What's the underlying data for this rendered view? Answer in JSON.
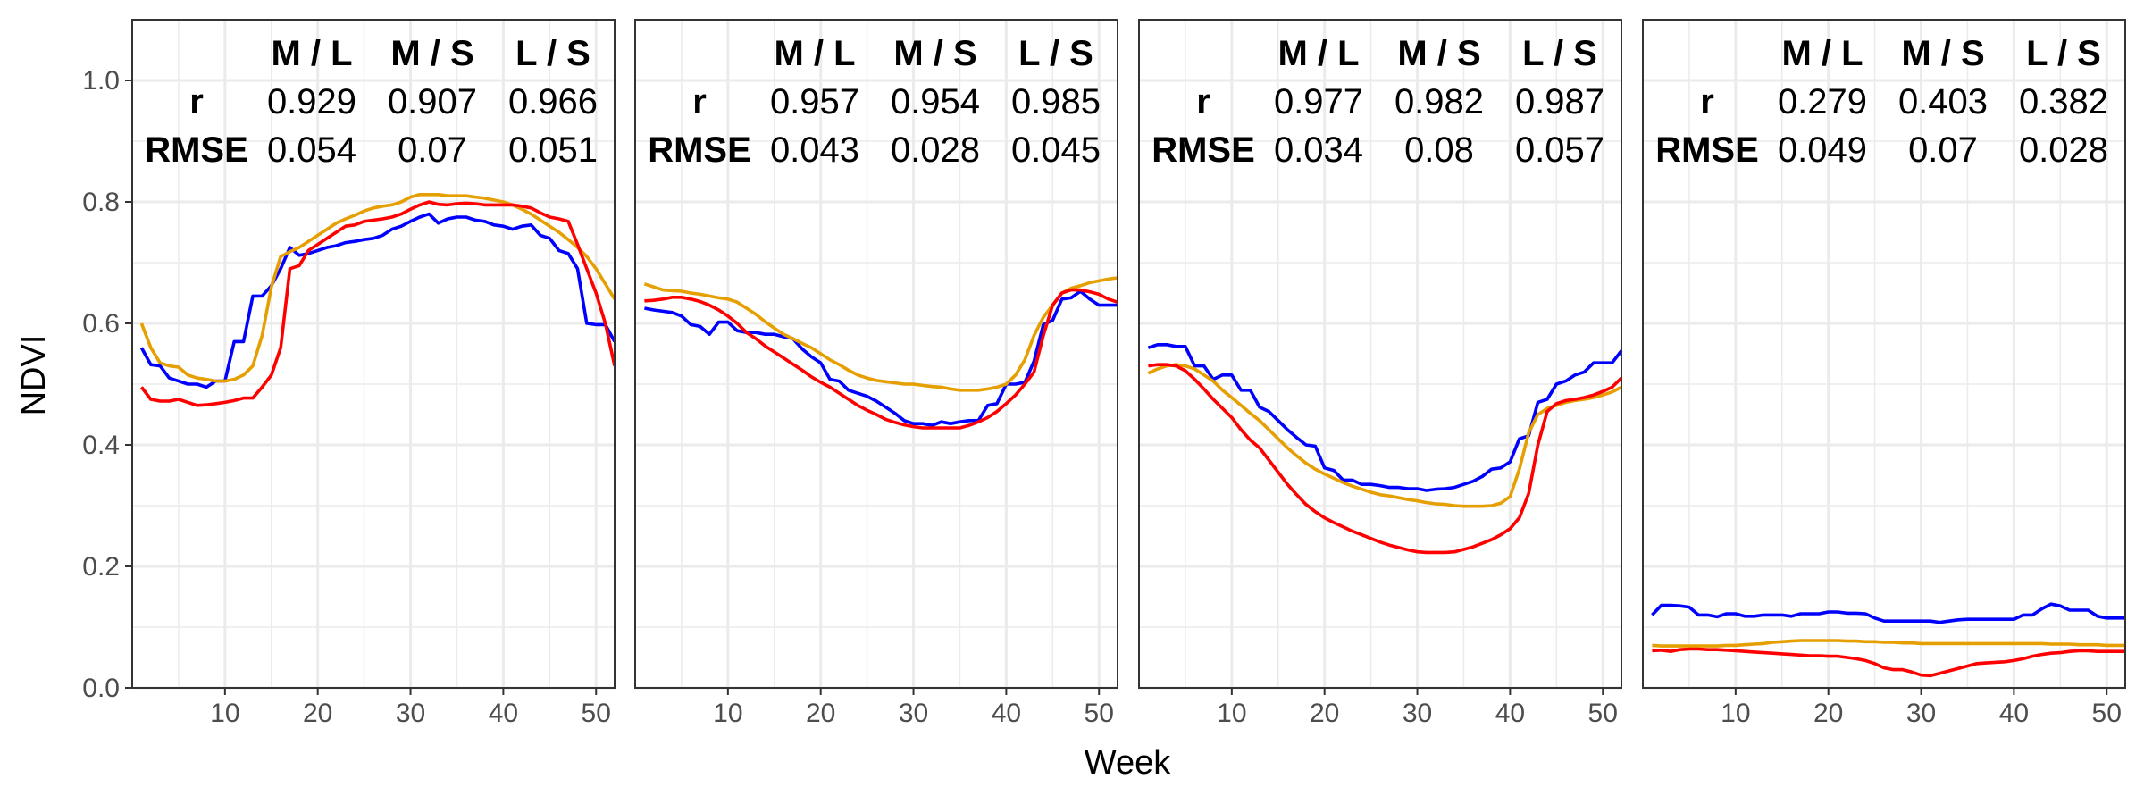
{
  "chart_data": {
    "type": "line",
    "xlabel": "Week",
    "ylabel": "NDVI",
    "xlim": [
      0,
      52
    ],
    "ylim": [
      0,
      1.1
    ],
    "x_ticks": [
      10,
      20,
      30,
      40,
      50
    ],
    "y_ticks": [
      0.0,
      0.2,
      0.4,
      0.6,
      0.8,
      1.0
    ],
    "y_tick_labels": [
      "0.0",
      "0.2",
      "0.4",
      "0.6",
      "0.8",
      "1.0"
    ],
    "grid": true,
    "series_colors": {
      "s1": "#ff0000",
      "s2": "#e69f00",
      "s3": "#0000ff"
    },
    "table_headers": [
      "M / L",
      "M / S",
      "L / S"
    ],
    "row_labels": [
      "r",
      "RMSE"
    ],
    "weeks": [
      1,
      2,
      3,
      4,
      5,
      6,
      7,
      8,
      9,
      10,
      11,
      12,
      13,
      14,
      15,
      16,
      17,
      18,
      19,
      20,
      21,
      22,
      23,
      24,
      25,
      26,
      27,
      28,
      29,
      30,
      31,
      32,
      33,
      34,
      35,
      36,
      37,
      38,
      39,
      40,
      41,
      42,
      43,
      44,
      45,
      46,
      47,
      48,
      49,
      50,
      51,
      52
    ],
    "panels": [
      {
        "stats": {
          "r": [
            "0.929",
            "0.907",
            "0.966"
          ],
          "rmse": [
            "0.054",
            "0.07",
            "0.051"
          ]
        },
        "series": [
          {
            "key": "s1",
            "values": [
              0.495,
              0.475,
              0.472,
              0.472,
              0.475,
              0.47,
              0.465,
              0.466,
              0.468,
              0.47,
              0.473,
              0.477,
              0.477,
              0.495,
              0.515,
              0.56,
              0.69,
              0.695,
              0.72,
              0.73,
              0.74,
              0.75,
              0.76,
              0.762,
              0.768,
              0.77,
              0.772,
              0.775,
              0.78,
              0.788,
              0.795,
              0.8,
              0.796,
              0.795,
              0.797,
              0.798,
              0.797,
              0.795,
              0.795,
              0.795,
              0.795,
              0.793,
              0.79,
              0.782,
              0.775,
              0.772,
              0.768,
              0.73,
              0.69,
              0.65,
              0.6,
              0.53
            ]
          },
          {
            "key": "s2",
            "values": [
              0.6,
              0.56,
              0.535,
              0.53,
              0.528,
              0.515,
              0.51,
              0.508,
              0.505,
              0.505,
              0.508,
              0.515,
              0.53,
              0.58,
              0.66,
              0.71,
              0.718,
              0.725,
              0.735,
              0.745,
              0.755,
              0.765,
              0.772,
              0.778,
              0.785,
              0.79,
              0.793,
              0.795,
              0.8,
              0.808,
              0.812,
              0.812,
              0.812,
              0.81,
              0.81,
              0.81,
              0.808,
              0.806,
              0.803,
              0.8,
              0.795,
              0.788,
              0.78,
              0.77,
              0.76,
              0.75,
              0.738,
              0.725,
              0.71,
              0.69,
              0.665,
              0.64
            ]
          },
          {
            "key": "s3",
            "values": [
              0.56,
              0.532,
              0.53,
              0.51,
              0.505,
              0.5,
              0.5,
              0.495,
              0.505,
              0.505,
              0.57,
              0.57,
              0.645,
              0.645,
              0.662,
              0.69,
              0.725,
              0.712,
              0.715,
              0.72,
              0.725,
              0.728,
              0.733,
              0.735,
              0.738,
              0.74,
              0.745,
              0.755,
              0.76,
              0.768,
              0.775,
              0.78,
              0.765,
              0.772,
              0.775,
              0.775,
              0.77,
              0.768,
              0.762,
              0.76,
              0.755,
              0.76,
              0.762,
              0.745,
              0.74,
              0.72,
              0.715,
              0.69,
              0.6,
              0.598,
              0.598,
              0.57
            ]
          }
        ]
      },
      {
        "stats": {
          "r": [
            "0.957",
            "0.954",
            "0.985"
          ],
          "rmse": [
            "0.043",
            "0.028",
            "0.045"
          ]
        },
        "series": [
          {
            "key": "s1",
            "values": [
              0.637,
              0.638,
              0.64,
              0.643,
              0.643,
              0.64,
              0.636,
              0.63,
              0.622,
              0.612,
              0.6,
              0.585,
              0.575,
              0.563,
              0.553,
              0.543,
              0.533,
              0.523,
              0.512,
              0.503,
              0.495,
              0.485,
              0.475,
              0.465,
              0.457,
              0.45,
              0.442,
              0.437,
              0.433,
              0.43,
              0.428,
              0.428,
              0.428,
              0.428,
              0.428,
              0.432,
              0.438,
              0.445,
              0.455,
              0.468,
              0.482,
              0.5,
              0.52,
              0.58,
              0.63,
              0.65,
              0.655,
              0.655,
              0.652,
              0.648,
              0.64,
              0.635
            ]
          },
          {
            "key": "s2",
            "values": [
              0.665,
              0.66,
              0.655,
              0.654,
              0.653,
              0.65,
              0.648,
              0.645,
              0.642,
              0.64,
              0.635,
              0.625,
              0.615,
              0.603,
              0.592,
              0.582,
              0.575,
              0.567,
              0.56,
              0.55,
              0.54,
              0.532,
              0.523,
              0.515,
              0.51,
              0.506,
              0.504,
              0.502,
              0.5,
              0.5,
              0.498,
              0.496,
              0.495,
              0.492,
              0.49,
              0.49,
              0.49,
              0.492,
              0.495,
              0.5,
              0.515,
              0.54,
              0.58,
              0.61,
              0.63,
              0.65,
              0.658,
              0.662,
              0.667,
              0.67,
              0.673,
              0.675
            ]
          },
          {
            "key": "s3",
            "values": [
              0.625,
              0.622,
              0.62,
              0.618,
              0.612,
              0.598,
              0.595,
              0.582,
              0.602,
              0.602,
              0.588,
              0.585,
              0.585,
              0.582,
              0.582,
              0.578,
              0.575,
              0.558,
              0.545,
              0.535,
              0.508,
              0.505,
              0.49,
              0.485,
              0.48,
              0.472,
              0.462,
              0.452,
              0.44,
              0.435,
              0.435,
              0.432,
              0.438,
              0.435,
              0.438,
              0.44,
              0.44,
              0.465,
              0.468,
              0.5,
              0.5,
              0.503,
              0.538,
              0.598,
              0.605,
              0.64,
              0.642,
              0.653,
              0.64,
              0.63,
              0.63,
              0.63
            ]
          }
        ]
      },
      {
        "stats": {
          "r": [
            "0.977",
            "0.982",
            "0.987"
          ],
          "rmse": [
            "0.034",
            "0.08",
            "0.057"
          ]
        },
        "series": [
          {
            "key": "s1",
            "values": [
              0.53,
              0.532,
              0.532,
              0.53,
              0.522,
              0.508,
              0.492,
              0.475,
              0.46,
              0.445,
              0.425,
              0.408,
              0.395,
              0.375,
              0.355,
              0.335,
              0.318,
              0.302,
              0.29,
              0.28,
              0.272,
              0.265,
              0.258,
              0.252,
              0.246,
              0.24,
              0.235,
              0.231,
              0.227,
              0.224,
              0.223,
              0.223,
              0.223,
              0.224,
              0.228,
              0.232,
              0.238,
              0.244,
              0.252,
              0.262,
              0.28,
              0.32,
              0.4,
              0.455,
              0.468,
              0.473,
              0.475,
              0.478,
              0.482,
              0.488,
              0.495,
              0.51
            ]
          },
          {
            "key": "s2",
            "values": [
              0.518,
              0.525,
              0.53,
              0.532,
              0.53,
              0.525,
              0.515,
              0.505,
              0.49,
              0.478,
              0.465,
              0.452,
              0.44,
              0.425,
              0.41,
              0.395,
              0.382,
              0.37,
              0.36,
              0.352,
              0.345,
              0.338,
              0.332,
              0.327,
              0.322,
              0.318,
              0.316,
              0.313,
              0.31,
              0.308,
              0.305,
              0.303,
              0.302,
              0.3,
              0.299,
              0.299,
              0.299,
              0.3,
              0.304,
              0.315,
              0.36,
              0.42,
              0.45,
              0.46,
              0.465,
              0.47,
              0.473,
              0.475,
              0.478,
              0.482,
              0.487,
              0.495
            ]
          },
          {
            "key": "s3",
            "values": [
              0.56,
              0.565,
              0.565,
              0.562,
              0.562,
              0.53,
              0.53,
              0.508,
              0.515,
              0.515,
              0.49,
              0.49,
              0.462,
              0.455,
              0.44,
              0.425,
              0.412,
              0.4,
              0.398,
              0.362,
              0.358,
              0.342,
              0.342,
              0.335,
              0.335,
              0.333,
              0.33,
              0.33,
              0.328,
              0.328,
              0.325,
              0.327,
              0.328,
              0.33,
              0.335,
              0.34,
              0.348,
              0.36,
              0.362,
              0.372,
              0.41,
              0.415,
              0.47,
              0.475,
              0.5,
              0.505,
              0.515,
              0.52,
              0.535,
              0.535,
              0.535,
              0.555
            ]
          }
        ]
      },
      {
        "stats": {
          "r": [
            "0.279",
            "0.403",
            "0.382"
          ],
          "rmse": [
            "0.049",
            "0.07",
            "0.028"
          ]
        },
        "series": [
          {
            "key": "s1",
            "values": [
              0.061,
              0.062,
              0.06,
              0.063,
              0.064,
              0.064,
              0.063,
              0.063,
              0.062,
              0.061,
              0.06,
              0.059,
              0.058,
              0.057,
              0.056,
              0.055,
              0.054,
              0.053,
              0.053,
              0.052,
              0.052,
              0.05,
              0.048,
              0.045,
              0.04,
              0.033,
              0.03,
              0.03,
              0.026,
              0.021,
              0.02,
              0.024,
              0.028,
              0.032,
              0.036,
              0.04,
              0.041,
              0.042,
              0.043,
              0.045,
              0.048,
              0.052,
              0.055,
              0.057,
              0.058,
              0.06,
              0.061,
              0.061,
              0.06,
              0.06,
              0.06,
              0.06
            ]
          },
          {
            "key": "s2",
            "values": [
              0.07,
              0.069,
              0.069,
              0.069,
              0.069,
              0.069,
              0.069,
              0.069,
              0.07,
              0.07,
              0.071,
              0.072,
              0.073,
              0.075,
              0.076,
              0.077,
              0.078,
              0.078,
              0.078,
              0.078,
              0.078,
              0.077,
              0.077,
              0.076,
              0.076,
              0.075,
              0.075,
              0.074,
              0.074,
              0.073,
              0.073,
              0.073,
              0.073,
              0.073,
              0.073,
              0.073,
              0.073,
              0.073,
              0.073,
              0.073,
              0.073,
              0.073,
              0.073,
              0.072,
              0.072,
              0.072,
              0.071,
              0.071,
              0.071,
              0.07,
              0.07,
              0.07
            ]
          },
          {
            "key": "s3",
            "values": [
              0.12,
              0.136,
              0.136,
              0.135,
              0.133,
              0.12,
              0.12,
              0.117,
              0.122,
              0.122,
              0.118,
              0.118,
              0.12,
              0.12,
              0.12,
              0.118,
              0.122,
              0.122,
              0.122,
              0.125,
              0.125,
              0.123,
              0.123,
              0.122,
              0.115,
              0.11,
              0.11,
              0.11,
              0.11,
              0.11,
              0.11,
              0.108,
              0.11,
              0.112,
              0.113,
              0.113,
              0.113,
              0.113,
              0.113,
              0.113,
              0.12,
              0.12,
              0.13,
              0.138,
              0.135,
              0.128,
              0.128,
              0.128,
              0.118,
              0.115,
              0.115,
              0.115
            ]
          }
        ]
      }
    ]
  }
}
